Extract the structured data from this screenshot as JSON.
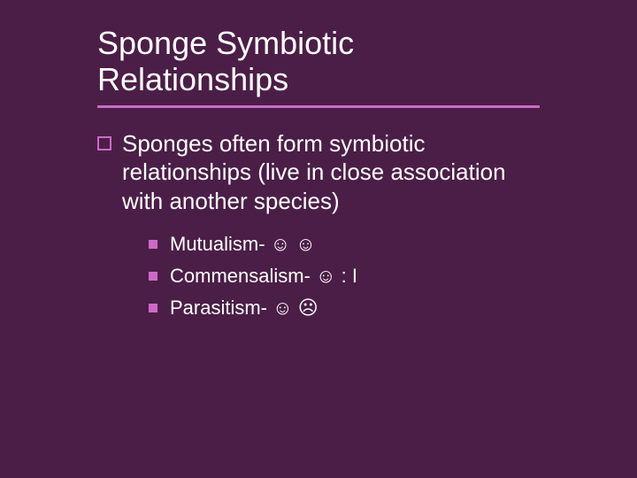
{
  "colors": {
    "background": "#4b1e47",
    "text": "#ffffff",
    "accent": "#cc6ac7"
  },
  "title": "Sponge Symbiotic Relationships",
  "body": {
    "level1": "Sponges often form symbiotic relationships (live in close association with another species)",
    "sub": [
      {
        "label": "Mutualism- ☺ ☺"
      },
      {
        "label": "Commensalism- ☺ : I"
      },
      {
        "label": "Parasitism- ☺ ☹"
      }
    ]
  },
  "typography": {
    "title_fontsize": 36,
    "body_fontsize": 26,
    "sub_fontsize": 22
  }
}
